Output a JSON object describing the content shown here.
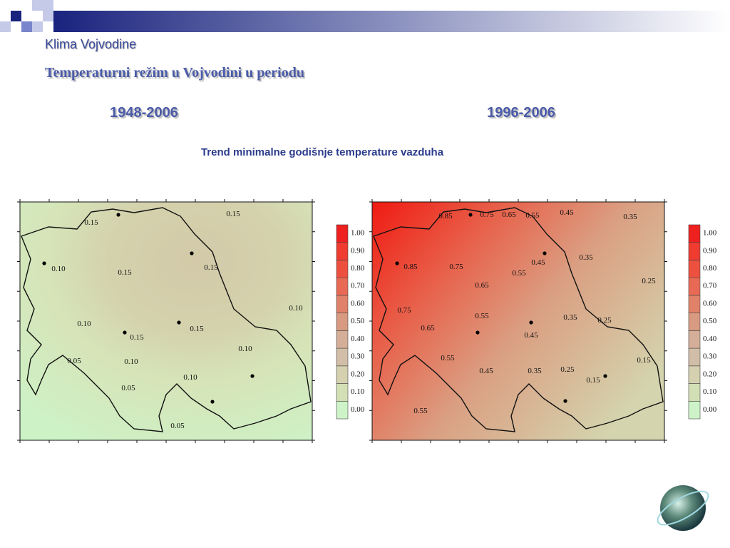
{
  "header": {
    "title": "Klima Vojvodine",
    "subtitle": "Temperaturni režim u Vojvodini u periodu"
  },
  "caption": "Trend minimalne godišnje temperature vazduha",
  "maps": [
    {
      "period": "1948-2006",
      "contour_labels": [
        "0.15",
        "0.15",
        "0.10",
        "0.15",
        "0.15",
        "0.10",
        "0.10",
        "0.15",
        "0.15",
        "0.05",
        "0.10",
        "0.10",
        "0.10",
        "0.05",
        "0.05"
      ]
    },
    {
      "period": "1996-2006",
      "contour_labels": [
        "0.85",
        "0.75",
        "0.65",
        "0.55",
        "0.45",
        "0.35",
        "0.85",
        "0.75",
        "0.45",
        "0.55",
        "0.35",
        "0.65",
        "0.25",
        "0.75",
        "0.55",
        "0.35",
        "0.25",
        "0.65",
        "0.45",
        "0.55",
        "0.45",
        "0.15",
        "0.35",
        "0.25",
        "0.15",
        "0.55"
      ]
    }
  ],
  "legend": {
    "levels": [
      {
        "value": 0,
        "label": "0.00"
      },
      {
        "value": 0.1,
        "label": "0.10"
      },
      {
        "value": 0.2,
        "label": "0.20"
      },
      {
        "value": 0.3,
        "label": "0.30"
      },
      {
        "value": 0.4,
        "label": "0.40"
      },
      {
        "value": 0.5,
        "label": "0.50"
      },
      {
        "value": 0.6,
        "label": "0.60"
      },
      {
        "value": 0.7,
        "label": "0.70"
      },
      {
        "value": 0.8,
        "label": "0.80"
      },
      {
        "value": 0.9,
        "label": "0.90"
      },
      {
        "value": 1,
        "label": "1.00"
      }
    ],
    "colors": [
      "#cef3c8",
      "#d3dfb5",
      "#d5d0b0",
      "#d2bea8",
      "#d4ae98",
      "#d89a80",
      "#e0826a",
      "#e86a55",
      "#ee5040",
      "#ef3b30",
      "#ee2020"
    ]
  }
}
